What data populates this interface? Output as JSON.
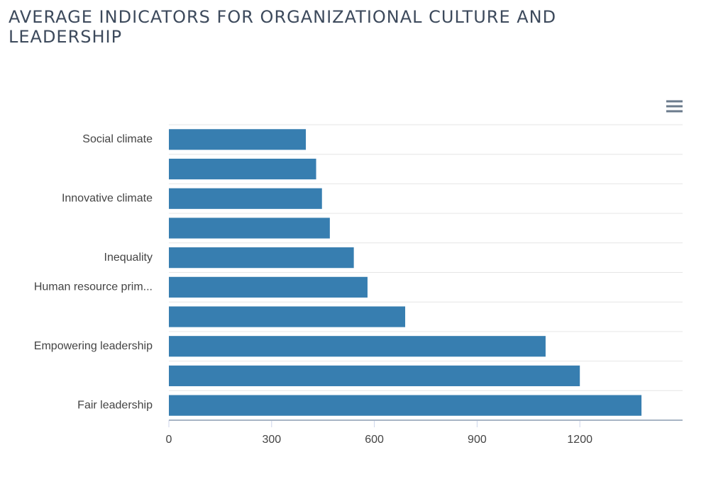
{
  "chart_data": {
    "type": "bar",
    "orientation": "horizontal",
    "title": "AVERAGE INDICATORS FOR ORGANIZATIONAL CULTURE AND LEADERSHIP",
    "categories": [
      "Social climate",
      null,
      "Innovative climate",
      null,
      "Inequality",
      "Human resource prim...",
      null,
      "Empowering leadership",
      null,
      "Fair leadership"
    ],
    "values": [
      400,
      430,
      447,
      470,
      540,
      580,
      690,
      1100,
      1200,
      1380
    ],
    "color": "#377eb0",
    "xlim": [
      0,
      1500
    ],
    "xticks": [
      0,
      300,
      600,
      900,
      1200
    ],
    "grid": true
  }
}
